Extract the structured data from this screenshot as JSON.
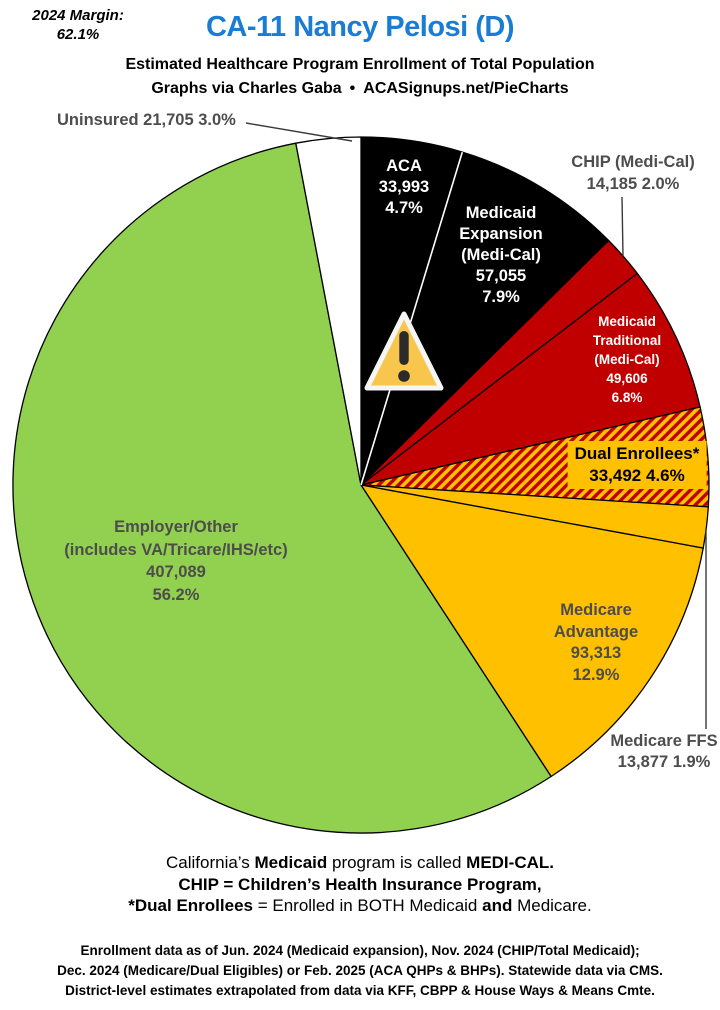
{
  "header": {
    "margin_label": "2024 Margin:",
    "margin_value": "62.1%",
    "title": "CA-11 Nancy Pelosi (D)",
    "subtitle1": "Estimated Healthcare Program Enrollment of Total Population",
    "subtitle2": "Graphs via Charles Gaba • ACASignups.net/PieCharts"
  },
  "chart_data": {
    "type": "pie",
    "title": "Estimated Healthcare Program Enrollment of Total Population",
    "direction": "clockwise",
    "start_angle_deg": 0,
    "total_pct": 100.0,
    "slices": [
      {
        "id": "aca",
        "label": "ACA",
        "value": 33993,
        "pct": 4.7,
        "color": "#000000",
        "text_color": "#FFFFFF"
      },
      {
        "id": "medicaid-expansion",
        "label": "Medicaid Expansion (Medi-Cal)",
        "value": 57055,
        "pct": 7.9,
        "color": "#000000",
        "text_color": "#FFFFFF"
      },
      {
        "id": "chip",
        "label": "CHIP (Medi-Cal)",
        "value": 14185,
        "pct": 2.0,
        "color": "#C00000",
        "text_color": "#4D4D4D"
      },
      {
        "id": "medicaid-traditional",
        "label": "Medicaid Traditional (Medi-Cal)",
        "value": 49606,
        "pct": 6.8,
        "color": "#C00000",
        "text_color": "#FFFFFF"
      },
      {
        "id": "dual-enrollees",
        "label": "Dual Enrollees*",
        "value": 33492,
        "pct": 4.6,
        "color": "#FFC000",
        "pattern": "hatch",
        "pattern_color": "#C00000",
        "text_color": "#000000"
      },
      {
        "id": "medicare-ffs",
        "label": "Medicare FFS",
        "value": 13877,
        "pct": 1.9,
        "color": "#FFC000",
        "text_color": "#4D4D4D"
      },
      {
        "id": "medicare-advantage",
        "label": "Medicare Advantage",
        "value": 93313,
        "pct": 12.9,
        "color": "#FFC000",
        "text_color": "#4D4D4D"
      },
      {
        "id": "employer-other",
        "label": "Employer/Other (includes VA/Tricare/IHS/etc)",
        "value": 407089,
        "pct": 56.2,
        "color": "#92D050",
        "text_color": "#4D4D4D"
      },
      {
        "id": "uninsured",
        "label": "Uninsured",
        "value": 21705,
        "pct": 3.0,
        "color": "#FFFFFF",
        "text_color": "#4D4D4D"
      }
    ]
  },
  "labels": {
    "uninsured": {
      "text": "Uninsured 21,705 3.0%"
    },
    "aca": {
      "lines": [
        "ACA",
        "33,993",
        "4.7%"
      ]
    },
    "medicaid_expansion": {
      "lines": [
        "Medicaid",
        "Expansion",
        "(Medi-Cal)",
        "57,055",
        "7.9%"
      ]
    },
    "chip": {
      "lines": [
        "CHIP (Medi-Cal)",
        "14,185 2.0%"
      ]
    },
    "medicaid_traditional": {
      "lines": [
        "Medicaid",
        "Traditional",
        "(Medi-Cal)",
        "49,606",
        "6.8%"
      ]
    },
    "dual_enrollees": {
      "lines": [
        "Dual Enrollees*",
        "33,492 4.6%"
      ]
    },
    "medicare_advantage": {
      "lines": [
        "Medicare",
        "Advantage",
        "93,313",
        "12.9%"
      ]
    },
    "medicare_ffs": {
      "lines": [
        "Medicare FFS",
        "13,877 1.9%"
      ]
    },
    "employer_other": {
      "lines": [
        "Employer/Other",
        "(includes VA/Tricare/IHS/etc)",
        "407,089",
        "56.2%"
      ]
    }
  },
  "notes": {
    "line1": [
      {
        "t": "California’s ",
        "b": false
      },
      {
        "t": "Medicaid",
        "b": true
      },
      {
        "t": " program is called ",
        "b": false
      },
      {
        "t": "MEDI-CAL.",
        "b": true
      }
    ],
    "line2": [
      {
        "t": "CHIP = Children’s Health Insurance Program,",
        "b": true
      }
    ],
    "line3": [
      {
        "t": "*Dual Enrollees",
        "b": true
      },
      {
        "t": " = Enrolled in BOTH Medicaid ",
        "b": false
      },
      {
        "t": "and",
        "b": true
      },
      {
        "t": " Medicare.",
        "b": false
      }
    ]
  },
  "footer": {
    "lines": [
      "Enrollment data as of Jun. 2024 (Medicaid expansion), Nov. 2024 (CHIP/Total Medicaid);",
      "Dec. 2024 (Medicare/Dual Eligibles) or Feb. 2025 (ACA QHPs & BHPs). Statewide data via CMS.",
      "District-level estimates extrapolated from data via KFF, CBPP & House Ways & Means Cmte."
    ]
  },
  "colors": {
    "title_blue": "#1A7CD3",
    "dark_red": "#C00000",
    "gold": "#FFC000",
    "green": "#92D050",
    "label_gray": "#4D4D4D",
    "warning_triangle_fill": "#F8C54D"
  }
}
